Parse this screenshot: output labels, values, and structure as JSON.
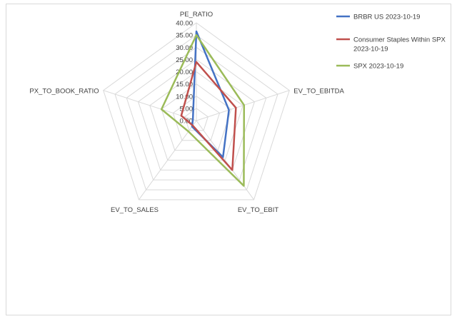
{
  "chart_data": {
    "type": "radar",
    "axes": [
      "PE_RATIO",
      "EV_TO_EBITDA",
      "EV_TO_EBIT",
      "EV_TO_SALES",
      "PX_TO_BOOK_RATIO"
    ],
    "ticks": [
      "0.00",
      "5.00",
      "10.00",
      "15.00",
      "20.00",
      "25.00",
      "30.00",
      "35.00",
      "40.00"
    ],
    "rmax": 40,
    "grid": true,
    "legend_position": "top-right",
    "series": [
      {
        "name": "BRBR US 2023-10-19",
        "color": "#4472c4",
        "values": [
          36.5,
          14.0,
          18.5,
          3.0,
          1.5
        ]
      },
      {
        "name": "Consumer Staples Within SPX 2023-10-19",
        "color": "#c0504d",
        "values": [
          24.0,
          17.0,
          25.0,
          2.5,
          6.5
        ]
      },
      {
        "name": "SPX 2023-10-19",
        "color": "#9bbb59",
        "values": [
          35.0,
          20.5,
          33.0,
          5.5,
          15.0
        ]
      }
    ]
  }
}
